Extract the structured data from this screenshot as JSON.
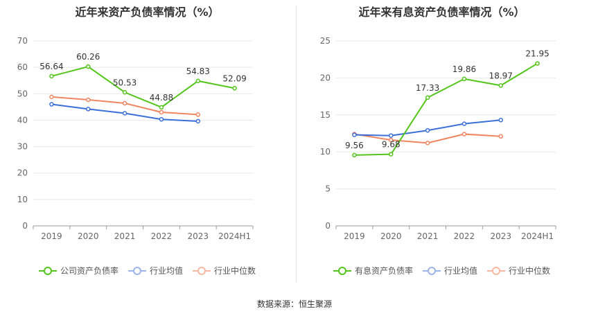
{
  "source_text": "数据来源：恒生聚源",
  "colors": {
    "company": "#52c41a",
    "industry_avg": "#3b6fd8",
    "industry_median": "#f08560"
  },
  "chart_data": [
    {
      "type": "line",
      "title": "近年来资产负债率情况（%）",
      "categories": [
        "2019",
        "2020",
        "2021",
        "2022",
        "2023",
        "2024H1"
      ],
      "ylim": [
        0,
        70
      ],
      "yticks": [
        0,
        10,
        20,
        30,
        40,
        50,
        60,
        70
      ],
      "grid": true,
      "legend_position": "bottom",
      "series": [
        {
          "name": "公司资产负债率",
          "values": [
            56.64,
            60.26,
            50.53,
            44.88,
            54.83,
            52.09
          ],
          "labels": [
            "56.64",
            "60.26",
            "50.53",
            "44.88",
            "54.83",
            "52.09"
          ]
        },
        {
          "name": "行业均值",
          "values": [
            46.0,
            44.2,
            42.6,
            40.3,
            39.6,
            null
          ]
        },
        {
          "name": "行业中位数",
          "values": [
            48.8,
            47.7,
            46.4,
            43.0,
            42.1,
            null
          ]
        }
      ]
    },
    {
      "type": "line",
      "title": "近年来有息资产负债率情况（%）",
      "categories": [
        "2019",
        "2020",
        "2021",
        "2022",
        "2023",
        "2024H1"
      ],
      "ylim": [
        0,
        25
      ],
      "yticks": [
        0,
        5,
        10,
        15,
        20,
        25
      ],
      "grid": true,
      "legend_position": "bottom",
      "series": [
        {
          "name": "有息资产负债率",
          "values": [
            9.56,
            9.68,
            17.33,
            19.86,
            18.97,
            21.95
          ],
          "labels": [
            "9.56",
            "9.68",
            "17.33",
            "19.86",
            "18.97",
            "21.95"
          ]
        },
        {
          "name": "行业均值",
          "values": [
            12.3,
            12.2,
            12.9,
            13.8,
            14.3,
            null
          ]
        },
        {
          "name": "行业中位数",
          "values": [
            12.4,
            11.6,
            11.2,
            12.4,
            12.1,
            null
          ]
        }
      ]
    }
  ]
}
